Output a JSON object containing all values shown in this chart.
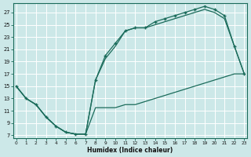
{
  "xlabel": "Humidex (Indice chaleur)",
  "background_color": "#cce8e8",
  "grid_color": "#ffffff",
  "line_color": "#1a6b5a",
  "xlim": [
    -0.3,
    23.3
  ],
  "ylim": [
    6.5,
    28.5
  ],
  "xticks": [
    0,
    1,
    2,
    3,
    4,
    5,
    6,
    7,
    8,
    9,
    10,
    11,
    12,
    13,
    14,
    15,
    16,
    17,
    18,
    19,
    20,
    21,
    22,
    23
  ],
  "yticks": [
    7,
    9,
    11,
    13,
    15,
    17,
    19,
    21,
    23,
    25,
    27
  ],
  "curve1_x": [
    0,
    1,
    2,
    3,
    4,
    5,
    6,
    7,
    8,
    9,
    10,
    11,
    12,
    13,
    14,
    15,
    16,
    17,
    18,
    19,
    20,
    21,
    22,
    23
  ],
  "curve1_y": [
    15,
    13,
    12,
    10,
    8.5,
    7.5,
    7.2,
    7.2,
    16,
    20,
    22,
    24,
    24.5,
    24.5,
    25.5,
    26,
    26.5,
    27,
    27.5,
    28,
    27.5,
    26.5,
    21.5,
    17
  ],
  "curve2_x": [
    0,
    1,
    2,
    3,
    4,
    5,
    6,
    7,
    8,
    9,
    10,
    11,
    12,
    13,
    14,
    15,
    16,
    17,
    18,
    19,
    20,
    21,
    22,
    23
  ],
  "curve2_y": [
    15,
    13,
    12,
    10,
    8.5,
    7.5,
    7.2,
    7.2,
    16,
    19.5,
    21.5,
    24,
    24.5,
    24.5,
    25,
    25.5,
    26,
    26.5,
    27,
    27.5,
    27,
    26,
    21.5,
    17
  ],
  "curve3_x": [
    0,
    1,
    2,
    3,
    4,
    5,
    6,
    7,
    8,
    9,
    10,
    11,
    12,
    13,
    14,
    15,
    16,
    17,
    18,
    19,
    20,
    21,
    22,
    23
  ],
  "curve3_y": [
    15,
    13,
    12,
    10,
    8.5,
    7.5,
    7.2,
    7.2,
    11.5,
    11.5,
    11.5,
    12,
    12,
    12.5,
    13,
    13.5,
    14,
    14.5,
    15,
    15.5,
    16,
    16.5,
    17,
    17
  ],
  "marker_x": [
    0,
    1,
    2,
    3,
    4,
    5,
    6,
    7,
    8,
    9,
    10,
    11,
    12,
    13,
    14,
    15,
    16,
    17,
    18,
    19,
    20,
    21,
    22,
    23
  ],
  "marker_y": [
    15,
    13,
    12,
    10,
    8.5,
    7.5,
    7.2,
    7.2,
    16,
    20,
    22,
    24,
    24.5,
    24.5,
    25.5,
    26,
    26.5,
    27,
    27.5,
    28,
    27.5,
    26.5,
    21.5,
    17
  ]
}
